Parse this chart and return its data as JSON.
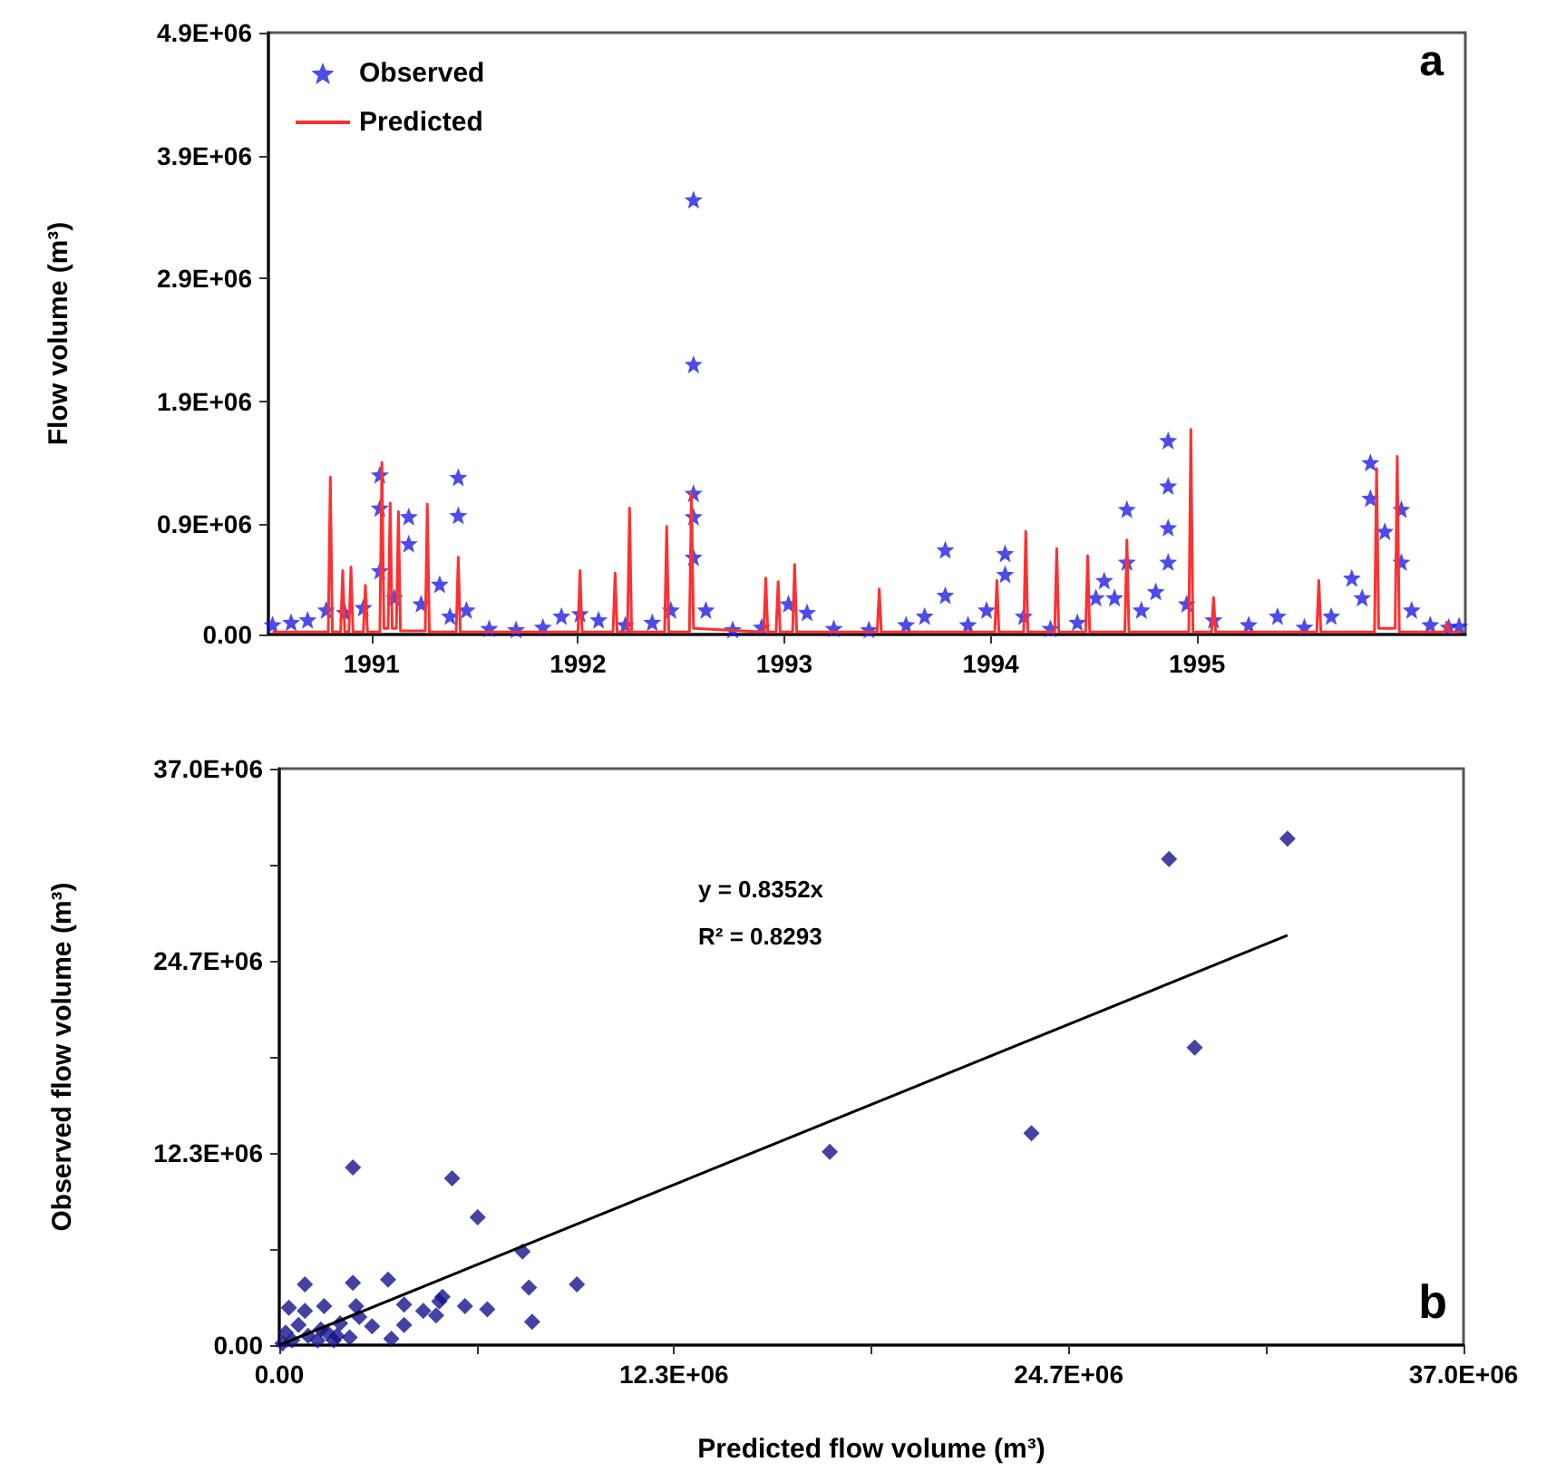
{
  "chart_data": [
    {
      "type": "scatter",
      "ylabel": "Flow volume (m³)",
      "annotations": [
        "a"
      ],
      "legend": "top left",
      "marker": "star",
      "grid": false,
      "xlim": [
        1990.5,
        1996.3
      ],
      "xticks": [
        1991,
        1992,
        1993,
        1994,
        1995
      ],
      "ylim": [
        0,
        4900000
      ],
      "yticks": [
        {
          "value": 0,
          "label": "0.00"
        },
        {
          "value": 900000,
          "label": "0.9E+06"
        },
        {
          "value": 1900000,
          "label": "1.9E+06"
        },
        {
          "value": 2900000,
          "label": "2.9E+06"
        },
        {
          "value": 3900000,
          "label": "3.9E+06"
        },
        {
          "value": 4900000,
          "label": "4.9E+06"
        }
      ],
      "series": [
        {
          "name": "Observed",
          "color": "#1f1fe6",
          "x": [
            1990.52,
            1990.61,
            1990.69,
            1990.78,
            1990.87,
            1990.96,
            1991.04,
            1991.04,
            1991.04,
            1991.11,
            1991.18,
            1991.18,
            1991.24,
            1991.33,
            1991.38,
            1991.42,
            1991.42,
            1991.46,
            1991.57,
            1991.7,
            1991.83,
            1991.92,
            1992.01,
            1992.1,
            1992.23,
            1992.36,
            1992.45,
            1992.56,
            1992.56,
            1992.56,
            1992.56,
            1992.56,
            1992.62,
            1992.75,
            1992.89,
            1993.02,
            1993.11,
            1993.24,
            1993.41,
            1993.59,
            1993.68,
            1993.78,
            1993.78,
            1993.89,
            1993.98,
            1994.07,
            1994.07,
            1994.16,
            1994.29,
            1994.42,
            1994.51,
            1994.55,
            1994.6,
            1994.66,
            1994.66,
            1994.73,
            1994.8,
            1994.86,
            1994.86,
            1994.86,
            1994.86,
            1994.95,
            1995.08,
            1995.25,
            1995.39,
            1995.52,
            1995.65,
            1995.75,
            1995.8,
            1995.84,
            1995.84,
            1995.91,
            1995.99,
            1995.99,
            1996.04,
            1996.13,
            1996.22,
            1996.27
          ],
          "values": [
            80000,
            100000,
            120000,
            200000,
            180000,
            220000,
            1300000,
            1030000,
            520000,
            300000,
            960000,
            740000,
            250000,
            410000,
            150000,
            1280000,
            970000,
            200000,
            50000,
            40000,
            60000,
            150000,
            170000,
            120000,
            80000,
            100000,
            200000,
            3540000,
            2200000,
            1150000,
            960000,
            630000,
            200000,
            40000,
            60000,
            250000,
            180000,
            50000,
            40000,
            80000,
            150000,
            690000,
            320000,
            80000,
            200000,
            660000,
            490000,
            150000,
            50000,
            100000,
            300000,
            440000,
            300000,
            1020000,
            590000,
            200000,
            350000,
            1580000,
            1210000,
            870000,
            590000,
            250000,
            120000,
            80000,
            150000,
            60000,
            150000,
            460000,
            300000,
            1400000,
            1110000,
            840000,
            1020000,
            590000,
            200000,
            80000,
            60000,
            70000
          ]
        },
        {
          "name": "Predicted",
          "type": "line",
          "marker": "none",
          "color": "#ff3030",
          "x": [
            1990.52,
            1990.79,
            1990.8,
            1990.81,
            1990.85,
            1990.86,
            1990.87,
            1990.89,
            1990.9,
            1990.91,
            1990.96,
            1990.97,
            1990.98,
            1991.04,
            1991.05,
            1991.06,
            1991.08,
            1991.09,
            1991.1,
            1991.12,
            1991.13,
            1991.14,
            1991.26,
            1991.27,
            1991.28,
            1991.41,
            1991.42,
            1991.43,
            1992.0,
            1992.01,
            1992.02,
            1992.17,
            1992.18,
            1992.19,
            1992.24,
            1992.25,
            1992.26,
            1992.42,
            1992.43,
            1992.44,
            1992.54,
            1992.55,
            1992.56,
            1992.9,
            1992.91,
            1992.92,
            1992.96,
            1992.97,
            1992.98,
            1993.04,
            1993.05,
            1993.06,
            1993.45,
            1993.46,
            1993.47,
            1994.02,
            1994.03,
            1994.04,
            1994.16,
            1994.17,
            1994.18,
            1994.31,
            1994.32,
            1994.33,
            1994.46,
            1994.47,
            1994.48,
            1994.65,
            1994.66,
            1994.67,
            1994.96,
            1994.97,
            1994.98,
            1995.07,
            1995.08,
            1995.09,
            1995.58,
            1995.59,
            1995.6,
            1995.86,
            1995.87,
            1995.88,
            1995.96,
            1995.97,
            1995.98,
            1996.2,
            1996.21,
            1996.22,
            1996.28
          ],
          "values": [
            20000,
            20000,
            1280000,
            20000,
            20000,
            520000,
            20000,
            20000,
            550000,
            20000,
            20000,
            400000,
            20000,
            20000,
            1400000,
            50000,
            50000,
            1070000,
            50000,
            50000,
            1000000,
            30000,
            30000,
            1060000,
            20000,
            20000,
            630000,
            20000,
            20000,
            520000,
            20000,
            20000,
            500000,
            20000,
            20000,
            1030000,
            20000,
            20000,
            880000,
            20000,
            20000,
            1150000,
            50000,
            20000,
            460000,
            20000,
            20000,
            430000,
            20000,
            20000,
            570000,
            20000,
            20000,
            370000,
            20000,
            20000,
            440000,
            20000,
            20000,
            840000,
            20000,
            20000,
            700000,
            20000,
            20000,
            640000,
            20000,
            20000,
            770000,
            20000,
            20000,
            1670000,
            20000,
            20000,
            300000,
            20000,
            20000,
            440000,
            20000,
            20000,
            1350000,
            50000,
            50000,
            1450000,
            20000,
            20000,
            100000,
            20000,
            20000
          ]
        }
      ]
    },
    {
      "type": "scatter",
      "xlabel": "Predicted flow volume (m³)",
      "ylabel": "Observed flow volume (m³)",
      "annotations": [
        "y = 0.8352x",
        "R² = 0.8293",
        "b"
      ],
      "legend": false,
      "marker": "diamond",
      "grid": false,
      "xlim": [
        0,
        37000000
      ],
      "xticks": [
        {
          "value": 0,
          "label": "0.00"
        },
        {
          "value": 6166667,
          "label": null
        },
        {
          "value": 12333333,
          "label": "12.3E+06"
        },
        {
          "value": 18500000,
          "label": null
        },
        {
          "value": 24666667,
          "label": "24.7E+06"
        },
        {
          "value": 30833333,
          "label": null
        },
        {
          "value": 37000000,
          "label": "37.0E+06"
        }
      ],
      "ylim": [
        0,
        37000000
      ],
      "yticks": [
        {
          "value": 0,
          "label": "0.00"
        },
        {
          "value": 6166667,
          "label": null
        },
        {
          "value": 12333333,
          "label": "12.3E+06"
        },
        {
          "value": 18500000,
          "label": null
        },
        {
          "value": 24666667,
          "label": "24.7E+06"
        },
        {
          "value": 30833333,
          "label": null
        },
        {
          "value": 37000000,
          "label": "37.0E+06"
        }
      ],
      "series": [
        {
          "color": "#14148c",
          "x": [
            31500000,
            27800000,
            28600000,
            23500000,
            17200000,
            2300000,
            5400000,
            6200000,
            7600000,
            9300000,
            7800000,
            7900000,
            6500000,
            5800000,
            5100000,
            5000000,
            4900000,
            4500000,
            3900000,
            3900000,
            3400000,
            3500000,
            2900000,
            2500000,
            2400000,
            2300000,
            1900000,
            1800000,
            1400000,
            1300000,
            800000,
            800000,
            300000,
            600000,
            200000,
            900000,
            1500000,
            400000,
            100000,
            1700000,
            1200000,
            2200000
          ],
          "values": [
            32500000,
            31200000,
            19100000,
            13600000,
            12400000,
            11400000,
            10700000,
            8200000,
            6000000,
            3900000,
            3700000,
            1500000,
            2300000,
            2500000,
            3100000,
            2800000,
            1900000,
            2200000,
            1300000,
            2600000,
            4200000,
            400000,
            1200000,
            1800000,
            2500000,
            4000000,
            1400000,
            600000,
            2500000,
            1000000,
            3900000,
            2200000,
            2400000,
            1300000,
            800000,
            600000,
            800000,
            300000,
            100000,
            300000,
            300000,
            500000
          ]
        },
        {
          "type": "line",
          "marker": "none",
          "color": "#000000",
          "x": [
            0,
            31500000
          ],
          "values": [
            0,
            26300000
          ]
        }
      ]
    }
  ]
}
